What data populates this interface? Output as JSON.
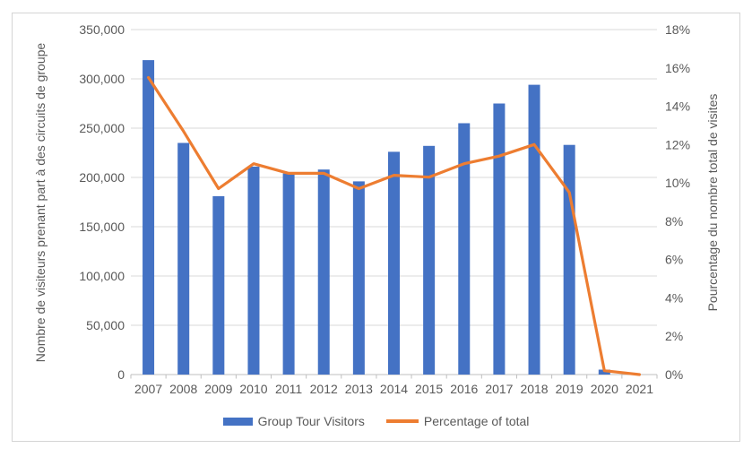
{
  "colors": {
    "bar": "#4472C4",
    "line": "#ED7D31",
    "gridline": "#D9D9D9",
    "axis_line": "#BFBFBF",
    "text": "#595959",
    "frame_border": "#D4D4D4",
    "background": "#FFFFFF"
  },
  "chart_data": {
    "type": "combo",
    "grid": true,
    "legend_position": "bottom",
    "categories": [
      "2007",
      "2008",
      "2009",
      "2010",
      "2011",
      "2012",
      "2013",
      "2014",
      "2015",
      "2016",
      "2017",
      "2018",
      "2019",
      "2020",
      "2021"
    ],
    "series": [
      {
        "name": "Group Tour Visitors",
        "type": "bar",
        "axis": "left",
        "color": "#4472C4",
        "values": [
          319000,
          235000,
          181000,
          211000,
          204000,
          208000,
          196000,
          226000,
          232000,
          255000,
          275000,
          294000,
          233000,
          5000,
          0
        ]
      },
      {
        "name": "Percentage of total",
        "type": "line",
        "axis": "right",
        "color": "#ED7D31",
        "values": [
          15.5,
          12.7,
          9.7,
          11.0,
          10.5,
          10.5,
          9.7,
          10.4,
          10.3,
          11.0,
          11.4,
          12.0,
          9.5,
          0.2,
          0.0
        ]
      }
    ],
    "left_axis": {
      "title": "Nombre de visiteurs prenant part à des circuits de groupe",
      "min": 0,
      "max": 350000,
      "step": 50000,
      "tick_labels": [
        "0",
        "50,000",
        "100,000",
        "150,000",
        "200,000",
        "250,000",
        "300,000",
        "350,000"
      ]
    },
    "right_axis": {
      "title": "Pourcentage du nombre total de visites",
      "min": 0,
      "max": 18,
      "step": 2,
      "tick_labels": [
        "0%",
        "2%",
        "4%",
        "6%",
        "8%",
        "10%",
        "12%",
        "14%",
        "16%",
        "18%"
      ]
    }
  }
}
